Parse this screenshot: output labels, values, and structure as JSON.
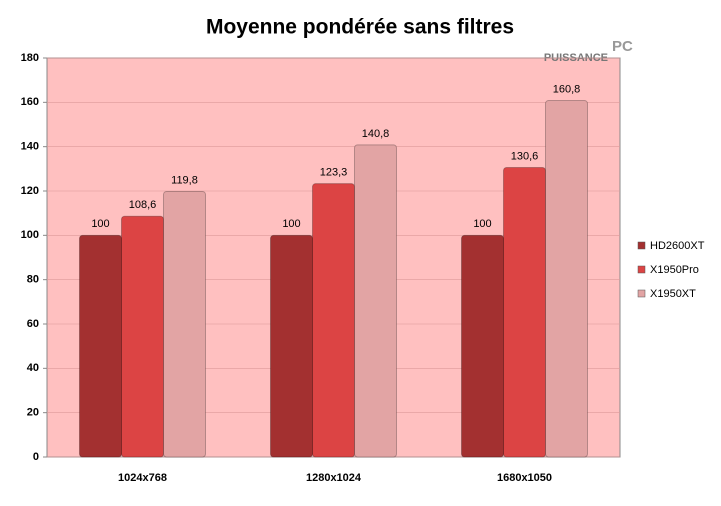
{
  "chart_data": {
    "type": "bar",
    "title": "Moyenne pondérée sans filtres",
    "categories": [
      "1024x768",
      "1280x1024",
      "1680x1050"
    ],
    "series": [
      {
        "name": "HD2600XT",
        "color": "#a33030",
        "values": [
          100,
          100,
          100
        ],
        "value_labels": [
          "100",
          "100",
          "100"
        ]
      },
      {
        "name": "X1950Pro",
        "color": "#dc4444",
        "values": [
          108.6,
          123.3,
          130.6
        ],
        "value_labels": [
          "108,6",
          "123,3",
          "130,6"
        ]
      },
      {
        "name": "X1950XT",
        "color": "#e2a4a4",
        "values": [
          119.8,
          140.8,
          160.8
        ],
        "value_labels": [
          "119,8",
          "140,8",
          "160,8"
        ]
      }
    ],
    "ylim": [
      0,
      180
    ],
    "yticks": [
      0,
      20,
      40,
      60,
      80,
      100,
      120,
      140,
      160,
      180
    ],
    "grid": true,
    "legend": "right"
  },
  "logo": {
    "word": "PUISSANCE",
    "mark": "PC"
  }
}
